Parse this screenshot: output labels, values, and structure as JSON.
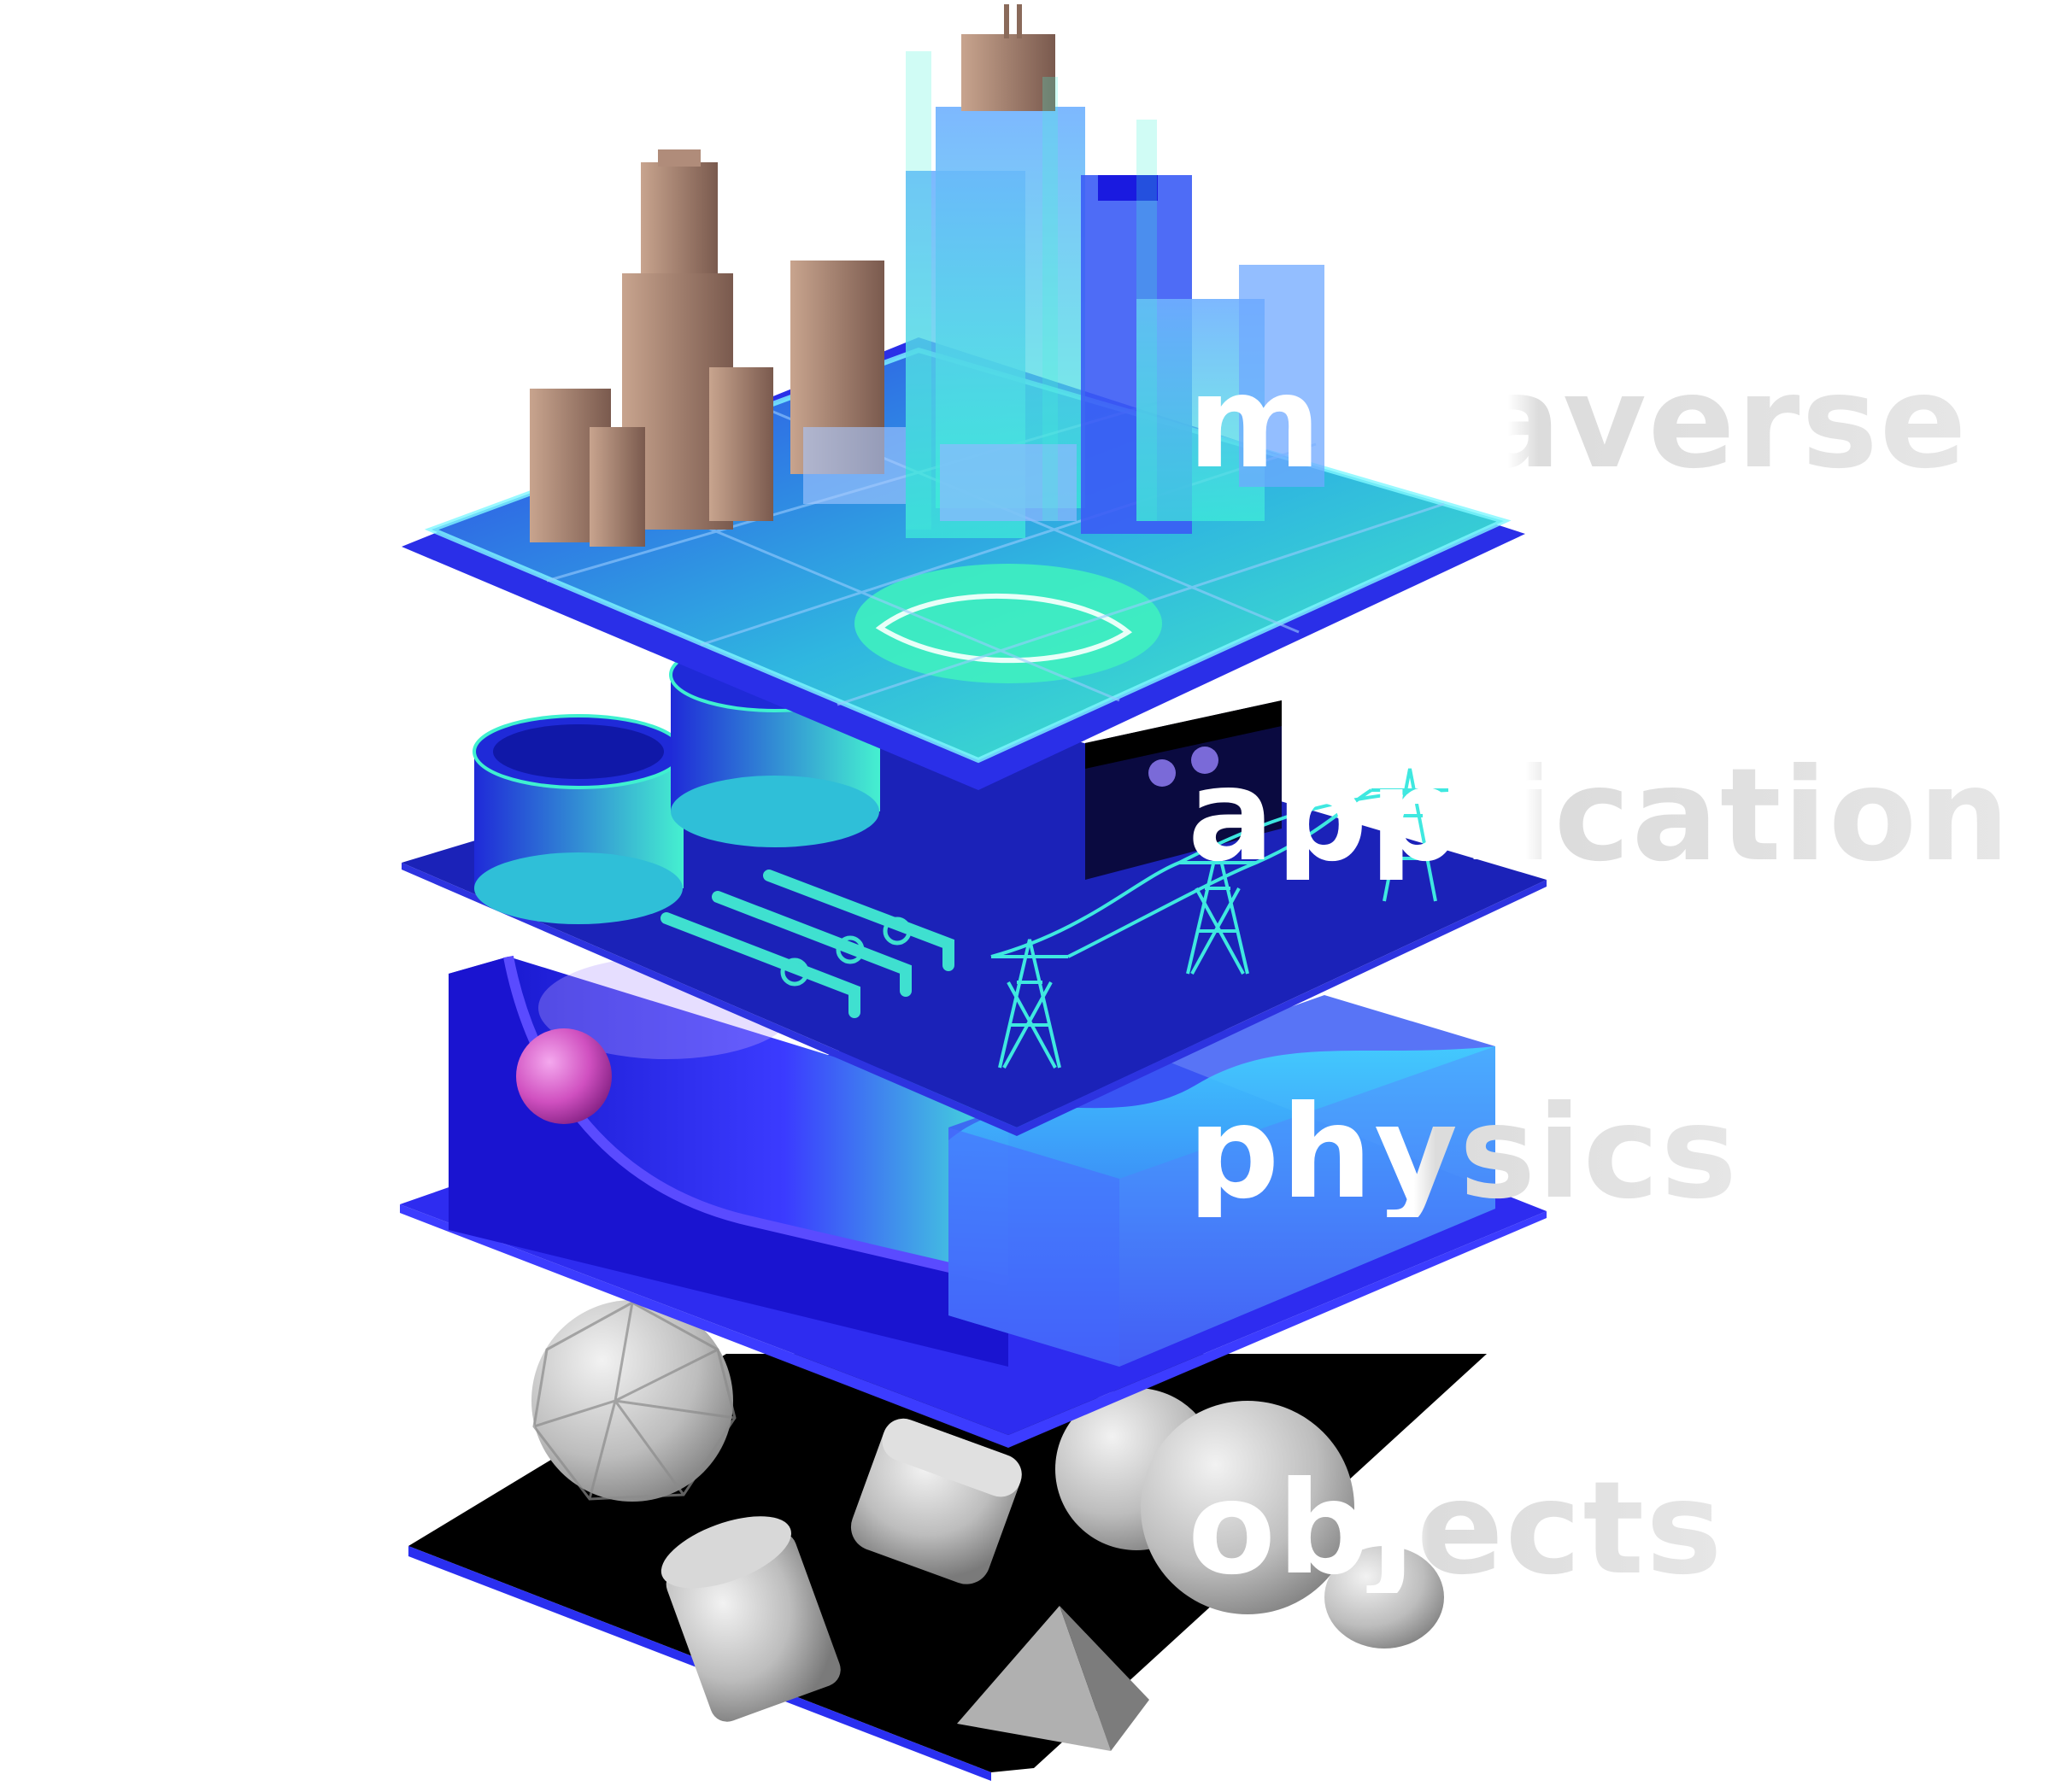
{
  "layers": [
    {
      "label": "metaverse",
      "color": "#2a2fe8",
      "accent": "#3ff0c8"
    },
    {
      "label": "application",
      "color": "#1b22b8",
      "accent": "#34e6d3"
    },
    {
      "label": "physics",
      "color": "#2e2cf0",
      "accent": "#3fe8e0"
    },
    {
      "label": "objects",
      "color": "#000000",
      "accent": "#b8b8b8"
    }
  ],
  "colors": {
    "platform_edge": "#3b37ff",
    "neon": "#45f5d8",
    "ball": "#d050c0",
    "label_front": "#ffffff",
    "label_back": "#e2e2e2"
  }
}
